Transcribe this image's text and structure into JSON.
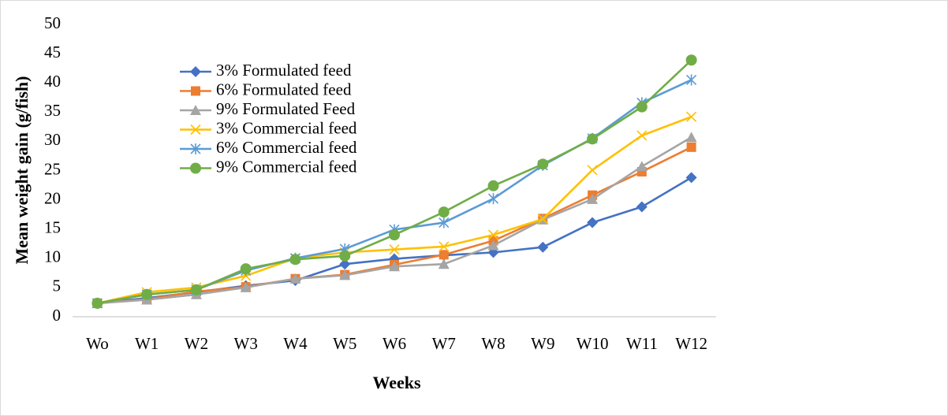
{
  "chart_data": {
    "type": "line",
    "ylabel": "Mean weight gain (g/fish)",
    "xlabel": "Weeks",
    "categories": [
      "Wo",
      "W1",
      "W2",
      "W3",
      "W4",
      "W5",
      "W6",
      "W7",
      "W8",
      "W9",
      "W10",
      "W11",
      "W12"
    ],
    "ylim": [
      0,
      50
    ],
    "yticks": [
      0,
      5,
      10,
      15,
      20,
      25,
      30,
      35,
      40,
      45,
      50
    ],
    "grid": false,
    "legend": "upper-left",
    "series": [
      {
        "name": "3% Formulated feed",
        "color": "#4472c4",
        "marker": "diamond",
        "values": [
          2.3,
          3.2,
          4.2,
          5.3,
          6.2,
          9.0,
          9.9,
          10.5,
          11.0,
          11.9,
          16.1,
          18.8,
          23.8
        ]
      },
      {
        "name": "6% Formulated feed",
        "color": "#ed7d31",
        "marker": "square",
        "values": [
          2.3,
          3.0,
          4.3,
          5.1,
          6.5,
          7.2,
          8.9,
          10.6,
          13.0,
          16.8,
          20.8,
          24.8,
          29.0
        ]
      },
      {
        "name": "9% Formulated Feed",
        "color": "#a5a5a5",
        "marker": "triangle",
        "values": [
          2.3,
          2.9,
          3.8,
          5.0,
          6.5,
          7.1,
          8.6,
          9.0,
          12.2,
          16.6,
          20.1,
          25.7,
          30.7
        ]
      },
      {
        "name": "3% Commercial feed",
        "color": "#ffc000",
        "marker": "x",
        "values": [
          2.3,
          4.2,
          5.0,
          7.0,
          10.0,
          11.0,
          11.5,
          12.0,
          14.0,
          16.7,
          25.1,
          31.0,
          34.2
        ]
      },
      {
        "name": "6% Commercial feed",
        "color": "#5b9bd5",
        "marker": "star",
        "values": [
          2.3,
          3.8,
          4.6,
          7.9,
          10.0,
          11.6,
          14.9,
          16.1,
          20.2,
          25.9,
          30.5,
          36.6,
          40.5
        ]
      },
      {
        "name": "9% Commercial feed",
        "color": "#70ad47",
        "marker": "circle",
        "values": [
          2.3,
          3.8,
          4.6,
          8.2,
          9.8,
          10.4,
          14.0,
          17.9,
          22.4,
          26.1,
          30.4,
          35.9,
          43.9
        ]
      }
    ]
  }
}
